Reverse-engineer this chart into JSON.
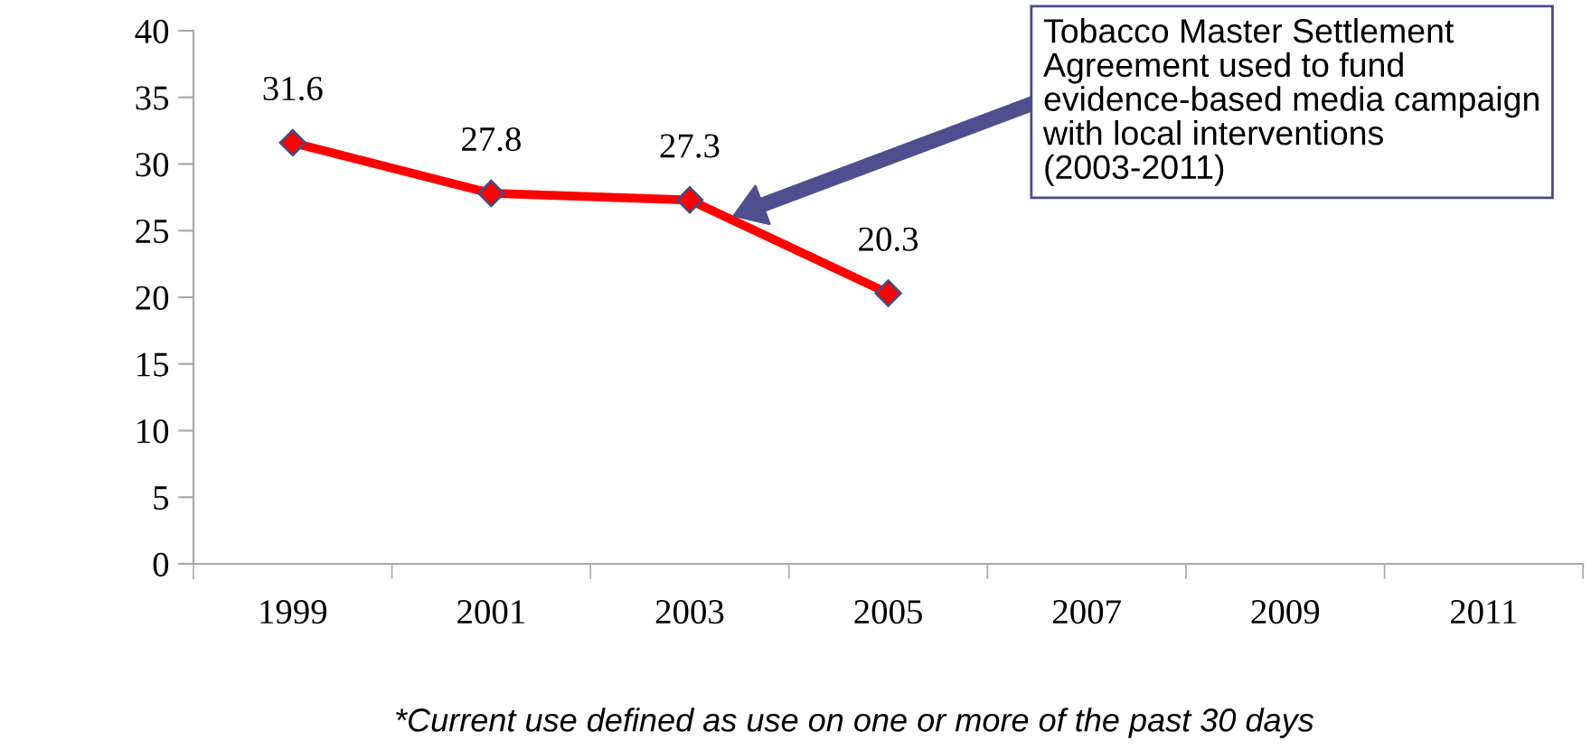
{
  "chart_data": {
    "type": "line",
    "categories": [
      "1999",
      "2001",
      "2003",
      "2005",
      "2007",
      "2009",
      "2011"
    ],
    "series": [
      {
        "color": "#ff0000",
        "values": [
          31.6,
          27.8,
          27.3,
          20.3,
          null,
          null,
          null
        ]
      }
    ],
    "ylim": [
      0,
      40
    ],
    "yticks": [
      0,
      5,
      10,
      15,
      20,
      25,
      30,
      35,
      40
    ],
    "marker": "diamond",
    "line_style": "solid",
    "grid": false,
    "legend": false,
    "data_labels": true,
    "annotations": [
      "Tobacco Master Settlement Agreement used to fund evidence-based media campaign with local interventions (2003-2011)",
      "*Current use defined as use on one or more of the past 30 days"
    ]
  }
}
